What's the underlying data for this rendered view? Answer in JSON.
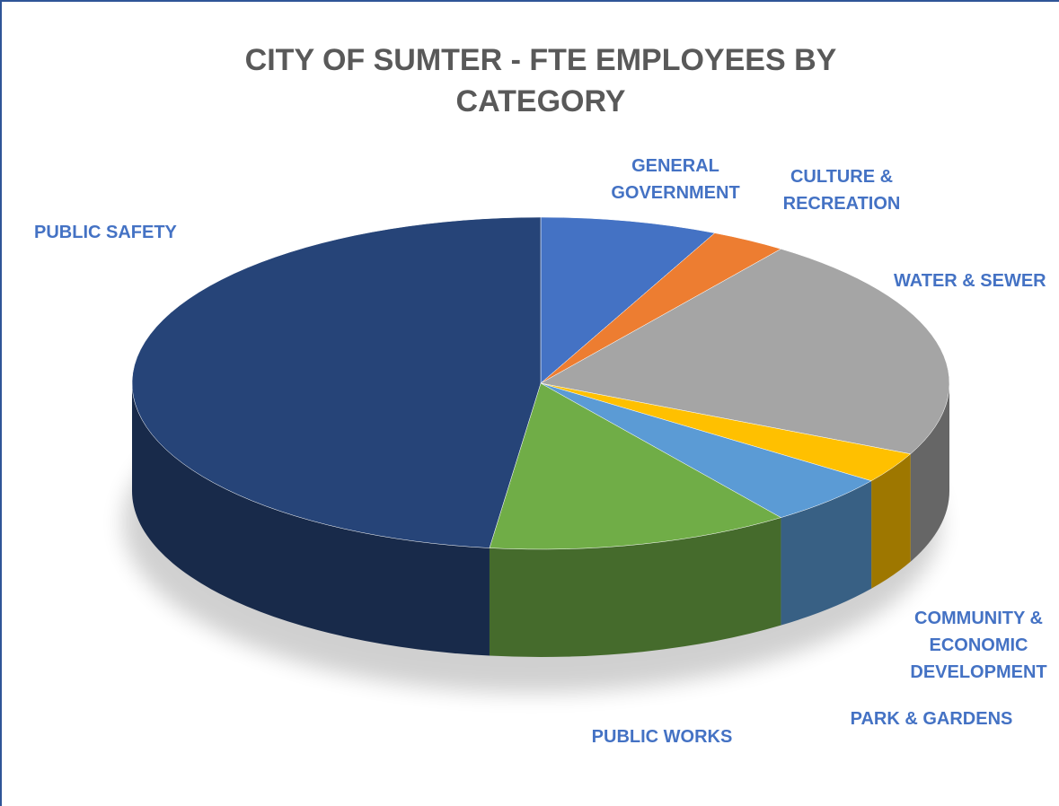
{
  "chart_data": {
    "type": "pie3d",
    "title": "CITY OF SUMTER - FTE EMPLOYEES BY CATEGORY",
    "categories": [
      "GENERAL GOVERNMENT",
      "CULTURE & RECREATION",
      "WATER & SEWER",
      "COMMUNITY & ECONOMIC DEVELOPMENT",
      "PARK & GARDENS",
      "PUBLIC WORKS",
      "PUBLIC SAFETY"
    ],
    "values": [
      7,
      3,
      22,
      3,
      5,
      12,
      48
    ],
    "colors": [
      "#4472c4",
      "#ed7d31",
      "#a5a5a5",
      "#ffc000",
      "#5b9bd5",
      "#70ad47",
      "#264478"
    ]
  }
}
